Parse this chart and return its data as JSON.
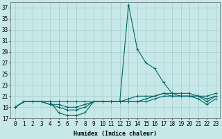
{
  "xlabel": "Humidex (Indice chaleur)",
  "ylabel": "",
  "bg_color": "#c6e8e8",
  "grid_color": "#aacaca",
  "line_color": "#006666",
  "xlim": [
    -0.5,
    23.5
  ],
  "ylim": [
    17,
    38
  ],
  "yticks": [
    17,
    19,
    21,
    23,
    25,
    27,
    29,
    31,
    33,
    35,
    37
  ],
  "xticks": [
    0,
    1,
    2,
    3,
    4,
    5,
    6,
    7,
    8,
    9,
    10,
    11,
    12,
    13,
    14,
    15,
    16,
    17,
    18,
    19,
    20,
    21,
    22,
    23
  ],
  "lines": [
    {
      "x": [
        0,
        1,
        2,
        3,
        4,
        5,
        6,
        7,
        8,
        9,
        10,
        11,
        12,
        13,
        14,
        15,
        16,
        17,
        18,
        19,
        20,
        21,
        22,
        23
      ],
      "y": [
        19,
        20,
        20,
        20,
        20,
        18,
        17.5,
        17.5,
        18,
        20,
        20,
        20,
        20,
        37.5,
        29.5,
        27,
        26,
        23.5,
        21.5,
        21,
        21,
        20.5,
        19.5,
        20.5
      ]
    },
    {
      "x": [
        0,
        1,
        2,
        3,
        4,
        5,
        6,
        7,
        8,
        9,
        10,
        11,
        12,
        13,
        14,
        15,
        16,
        17,
        18,
        19,
        20,
        21,
        22,
        23
      ],
      "y": [
        19,
        20,
        20,
        20,
        19.5,
        19,
        18.5,
        18.5,
        19,
        20,
        20,
        20,
        20,
        20,
        20,
        20,
        20.5,
        21,
        21,
        21,
        21,
        21,
        20,
        21
      ]
    },
    {
      "x": [
        0,
        1,
        2,
        3,
        4,
        5,
        6,
        7,
        8,
        9,
        10,
        11,
        12,
        13,
        14,
        15,
        16,
        17,
        18,
        19,
        20,
        21,
        22,
        23
      ],
      "y": [
        19,
        20,
        20,
        20,
        19.5,
        19.5,
        19,
        19,
        19.5,
        20,
        20,
        20,
        20,
        20,
        20,
        20.5,
        21,
        21.5,
        21,
        21,
        21,
        21,
        20.5,
        21
      ]
    },
    {
      "x": [
        0,
        1,
        2,
        3,
        4,
        5,
        6,
        7,
        8,
        9,
        10,
        11,
        12,
        13,
        14,
        15,
        16,
        17,
        18,
        19,
        20,
        21,
        22,
        23
      ],
      "y": [
        19,
        20,
        20,
        20,
        20,
        20,
        20,
        20,
        20,
        20,
        20,
        20,
        20,
        20.5,
        21,
        21,
        21,
        21.5,
        21.5,
        21.5,
        21.5,
        21,
        21,
        21.5
      ]
    }
  ]
}
